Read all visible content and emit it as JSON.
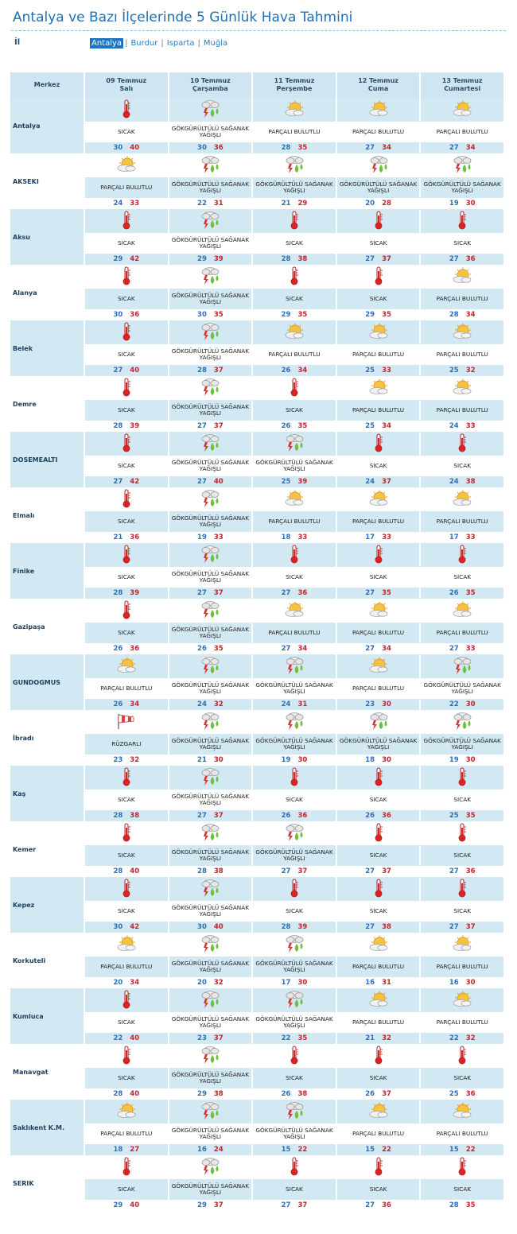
{
  "page": {
    "title": "Antalya ve Bazı İlçelerinde 5 Günlük Hava Tahmini"
  },
  "province_selector": {
    "label": "İl",
    "items": [
      {
        "label": "Antalya",
        "selected": true
      },
      {
        "label": "Burdur",
        "selected": false
      },
      {
        "label": "Isparta",
        "selected": false
      },
      {
        "label": "Muğla",
        "selected": false
      }
    ]
  },
  "table": {
    "corner_label": "Merkez",
    "days": [
      {
        "date": "09 Temmuz",
        "weekday": "Salı"
      },
      {
        "date": "10 Temmuz",
        "weekday": "Çarşamba"
      },
      {
        "date": "11 Temmuz",
        "weekday": "Perşembe"
      },
      {
        "date": "12 Temmuz",
        "weekday": "Cuma"
      },
      {
        "date": "13 Temmuz",
        "weekday": "Cumartesi"
      }
    ],
    "conditions": {
      "sicak": {
        "label": "SICAK",
        "icon": "thermometer-icon"
      },
      "gsy": {
        "label": "GÖKGÜRÜLTÜLÜ SAĞANAK YAĞIŞLI",
        "icon": "thunderstorm-rain-icon"
      },
      "pb": {
        "label": "PARÇALI BULUTLU",
        "icon": "partly-cloudy-icon"
      },
      "rz": {
        "label": "RÜZGARLI",
        "icon": "windsock-icon"
      }
    },
    "colors": {
      "header_bg": "#cfe6f2",
      "row_bg": "#d2e8f3",
      "min_temp": "#2e6fb7",
      "max_temp": "#c0262d",
      "title": "#1f6fb5"
    },
    "cities": [
      {
        "name": "Antalya",
        "days": [
          {
            "cond": "sicak",
            "min": "30",
            "max": "40"
          },
          {
            "cond": "gsy",
            "min": "30",
            "max": "36"
          },
          {
            "cond": "pb",
            "min": "28",
            "max": "35"
          },
          {
            "cond": "pb",
            "min": "27",
            "max": "34"
          },
          {
            "cond": "pb",
            "min": "27",
            "max": "34"
          }
        ]
      },
      {
        "name": "AKSEKI",
        "days": [
          {
            "cond": "pb",
            "min": "24",
            "max": "33"
          },
          {
            "cond": "gsy",
            "min": "22",
            "max": "31"
          },
          {
            "cond": "gsy",
            "min": "21",
            "max": "29"
          },
          {
            "cond": "gsy",
            "min": "20",
            "max": "28"
          },
          {
            "cond": "gsy",
            "min": "19",
            "max": "30"
          }
        ]
      },
      {
        "name": "Aksu",
        "days": [
          {
            "cond": "sicak",
            "min": "29",
            "max": "42"
          },
          {
            "cond": "gsy",
            "min": "29",
            "max": "39"
          },
          {
            "cond": "sicak",
            "min": "28",
            "max": "38"
          },
          {
            "cond": "sicak",
            "min": "27",
            "max": "37"
          },
          {
            "cond": "sicak",
            "min": "27",
            "max": "36"
          }
        ]
      },
      {
        "name": "Alanya",
        "days": [
          {
            "cond": "sicak",
            "min": "30",
            "max": "36"
          },
          {
            "cond": "gsy",
            "min": "30",
            "max": "35"
          },
          {
            "cond": "sicak",
            "min": "29",
            "max": "35"
          },
          {
            "cond": "sicak",
            "min": "29",
            "max": "35"
          },
          {
            "cond": "pb",
            "min": "28",
            "max": "34"
          }
        ]
      },
      {
        "name": "Belek",
        "days": [
          {
            "cond": "sicak",
            "min": "27",
            "max": "40"
          },
          {
            "cond": "gsy",
            "min": "28",
            "max": "37"
          },
          {
            "cond": "pb",
            "min": "26",
            "max": "34"
          },
          {
            "cond": "pb",
            "min": "25",
            "max": "33"
          },
          {
            "cond": "pb",
            "min": "25",
            "max": "32"
          }
        ]
      },
      {
        "name": "Demre",
        "days": [
          {
            "cond": "sicak",
            "min": "28",
            "max": "39"
          },
          {
            "cond": "gsy",
            "min": "27",
            "max": "37"
          },
          {
            "cond": "sicak",
            "min": "26",
            "max": "35"
          },
          {
            "cond": "pb",
            "min": "25",
            "max": "34"
          },
          {
            "cond": "pb",
            "min": "24",
            "max": "33"
          }
        ]
      },
      {
        "name": "DOSEMEALTI",
        "days": [
          {
            "cond": "sicak",
            "min": "27",
            "max": "42"
          },
          {
            "cond": "gsy",
            "min": "27",
            "max": "40"
          },
          {
            "cond": "gsy",
            "min": "25",
            "max": "39"
          },
          {
            "cond": "sicak",
            "min": "24",
            "max": "37"
          },
          {
            "cond": "sicak",
            "min": "24",
            "max": "38"
          }
        ]
      },
      {
        "name": "Elmalı",
        "days": [
          {
            "cond": "sicak",
            "min": "21",
            "max": "36"
          },
          {
            "cond": "gsy",
            "min": "19",
            "max": "33"
          },
          {
            "cond": "pb",
            "min": "18",
            "max": "33"
          },
          {
            "cond": "pb",
            "min": "17",
            "max": "33"
          },
          {
            "cond": "pb",
            "min": "17",
            "max": "33"
          }
        ]
      },
      {
        "name": "Finike",
        "days": [
          {
            "cond": "sicak",
            "min": "28",
            "max": "39"
          },
          {
            "cond": "gsy",
            "min": "27",
            "max": "37"
          },
          {
            "cond": "sicak",
            "min": "27",
            "max": "36"
          },
          {
            "cond": "sicak",
            "min": "27",
            "max": "35"
          },
          {
            "cond": "sicak",
            "min": "26",
            "max": "35"
          }
        ]
      },
      {
        "name": "Gazipaşa",
        "days": [
          {
            "cond": "sicak",
            "min": "26",
            "max": "36"
          },
          {
            "cond": "gsy",
            "min": "26",
            "max": "35"
          },
          {
            "cond": "pb",
            "min": "27",
            "max": "34"
          },
          {
            "cond": "pb",
            "min": "27",
            "max": "34"
          },
          {
            "cond": "pb",
            "min": "27",
            "max": "33"
          }
        ]
      },
      {
        "name": "GUNDOGMUS",
        "days": [
          {
            "cond": "pb",
            "min": "26",
            "max": "34"
          },
          {
            "cond": "gsy",
            "min": "24",
            "max": "32"
          },
          {
            "cond": "gsy",
            "min": "24",
            "max": "31"
          },
          {
            "cond": "pb",
            "min": "23",
            "max": "30"
          },
          {
            "cond": "gsy",
            "min": "22",
            "max": "30"
          }
        ]
      },
      {
        "name": "İbradı",
        "days": [
          {
            "cond": "rz",
            "min": "23",
            "max": "32"
          },
          {
            "cond": "gsy",
            "min": "21",
            "max": "30"
          },
          {
            "cond": "gsy",
            "min": "19",
            "max": "30"
          },
          {
            "cond": "gsy",
            "min": "18",
            "max": "30"
          },
          {
            "cond": "gsy",
            "min": "19",
            "max": "30"
          }
        ]
      },
      {
        "name": "Kaş",
        "days": [
          {
            "cond": "sicak",
            "min": "28",
            "max": "38"
          },
          {
            "cond": "gsy",
            "min": "27",
            "max": "37"
          },
          {
            "cond": "sicak",
            "min": "26",
            "max": "36"
          },
          {
            "cond": "sicak",
            "min": "26",
            "max": "36"
          },
          {
            "cond": "sicak",
            "min": "25",
            "max": "35"
          }
        ]
      },
      {
        "name": "Kemer",
        "days": [
          {
            "cond": "sicak",
            "min": "28",
            "max": "40"
          },
          {
            "cond": "gsy",
            "min": "28",
            "max": "38"
          },
          {
            "cond": "gsy",
            "min": "27",
            "max": "37"
          },
          {
            "cond": "sicak",
            "min": "27",
            "max": "37"
          },
          {
            "cond": "sicak",
            "min": "27",
            "max": "36"
          }
        ]
      },
      {
        "name": "Kepez",
        "days": [
          {
            "cond": "sicak",
            "min": "30",
            "max": "42"
          },
          {
            "cond": "gsy",
            "min": "30",
            "max": "40"
          },
          {
            "cond": "sicak",
            "min": "28",
            "max": "39"
          },
          {
            "cond": "sicak",
            "min": "27",
            "max": "38"
          },
          {
            "cond": "sicak",
            "min": "27",
            "max": "37"
          }
        ]
      },
      {
        "name": "Korkuteli",
        "days": [
          {
            "cond": "pb",
            "min": "20",
            "max": "34"
          },
          {
            "cond": "gsy",
            "min": "20",
            "max": "32"
          },
          {
            "cond": "gsy",
            "min": "17",
            "max": "30"
          },
          {
            "cond": "pb",
            "min": "16",
            "max": "31"
          },
          {
            "cond": "pb",
            "min": "16",
            "max": "30"
          }
        ]
      },
      {
        "name": "Kumluca",
        "days": [
          {
            "cond": "sicak",
            "min": "22",
            "max": "40"
          },
          {
            "cond": "gsy",
            "min": "23",
            "max": "37"
          },
          {
            "cond": "gsy",
            "min": "22",
            "max": "35"
          },
          {
            "cond": "pb",
            "min": "21",
            "max": "32"
          },
          {
            "cond": "pb",
            "min": "22",
            "max": "32"
          }
        ]
      },
      {
        "name": "Manavgat",
        "days": [
          {
            "cond": "sicak",
            "min": "28",
            "max": "40"
          },
          {
            "cond": "gsy",
            "min": "29",
            "max": "38"
          },
          {
            "cond": "sicak",
            "min": "26",
            "max": "38"
          },
          {
            "cond": "sicak",
            "min": "26",
            "max": "37"
          },
          {
            "cond": "sicak",
            "min": "25",
            "max": "36"
          }
        ]
      },
      {
        "name": "Saklıkent K.M.",
        "days": [
          {
            "cond": "pb",
            "min": "18",
            "max": "27"
          },
          {
            "cond": "gsy",
            "min": "16",
            "max": "24"
          },
          {
            "cond": "gsy",
            "min": "15",
            "max": "22"
          },
          {
            "cond": "pb",
            "min": "15",
            "max": "22"
          },
          {
            "cond": "pb",
            "min": "15",
            "max": "22"
          }
        ]
      },
      {
        "name": "SERIK",
        "days": [
          {
            "cond": "sicak",
            "min": "29",
            "max": "40"
          },
          {
            "cond": "gsy",
            "min": "29",
            "max": "37"
          },
          {
            "cond": "sicak",
            "min": "27",
            "max": "37"
          },
          {
            "cond": "sicak",
            "min": "27",
            "max": "36"
          },
          {
            "cond": "sicak",
            "min": "28",
            "max": "35"
          }
        ]
      }
    ]
  }
}
